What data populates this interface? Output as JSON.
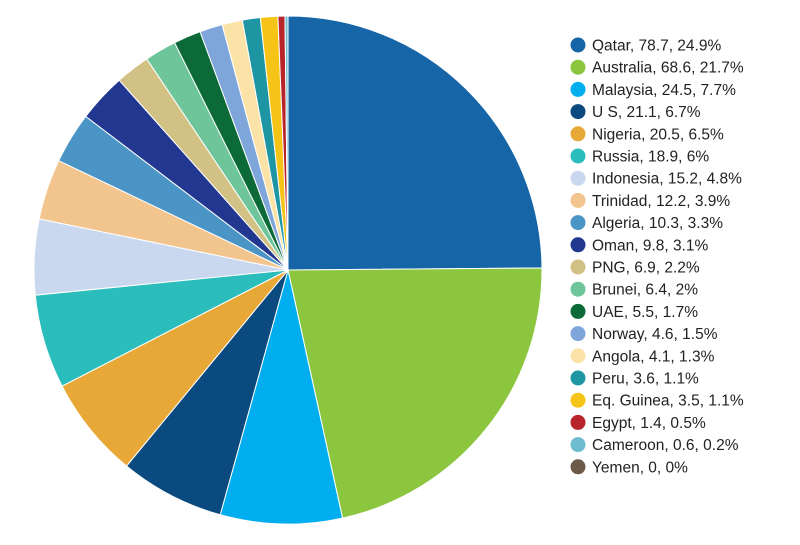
{
  "chart_data": {
    "type": "pie",
    "title": "",
    "legend_position": "right",
    "slices": [
      {
        "label": "Qatar, 78.7, 24.9%",
        "category": "Qatar",
        "value": 78.7,
        "percent": 24.9,
        "color": "#1565a7"
      },
      {
        "label": "Australia, 68.6, 21.7%",
        "category": "Australia",
        "value": 68.6,
        "percent": 21.7,
        "color": "#8cc63f"
      },
      {
        "label": "Malaysia, 24.5, 7.7%",
        "category": "Malaysia",
        "value": 24.5,
        "percent": 7.7,
        "color": "#00aeef"
      },
      {
        "label": "U S, 21.1, 6.7%",
        "category": "U S",
        "value": 21.1,
        "percent": 6.7,
        "color": "#0b4a7f"
      },
      {
        "label": "Nigeria, 20.5, 6.5%",
        "category": "Nigeria",
        "value": 20.5,
        "percent": 6.5,
        "color": "#e8a838"
      },
      {
        "label": "Russia, 18.9, 6%",
        "category": "Russia",
        "value": 18.9,
        "percent": 6,
        "color": "#2bbcbc"
      },
      {
        "label": "Indonesia, 15.2, 4.8%",
        "category": "Indonesia",
        "value": 15.2,
        "percent": 4.8,
        "color": "#c9d8ef"
      },
      {
        "label": "Trinidad, 12.2, 3.9%",
        "category": "Trinidad",
        "value": 12.2,
        "percent": 3.9,
        "color": "#f2c48e"
      },
      {
        "label": "Algeria, 10.3, 3.3%",
        "category": "Algeria",
        "value": 10.3,
        "percent": 3.3,
        "color": "#4a95c6"
      },
      {
        "label": "Oman, 9.8, 3.1%",
        "category": "Oman",
        "value": 9.8,
        "percent": 3.1,
        "color": "#22378f"
      },
      {
        "label": "PNG, 6.9, 2.2%",
        "category": "PNG",
        "value": 6.9,
        "percent": 2.2,
        "color": "#d2c184"
      },
      {
        "label": "Brunei, 6.4, 2%",
        "category": "Brunei",
        "value": 6.4,
        "percent": 2,
        "color": "#6fc59a"
      },
      {
        "label": "UAE, 5.5, 1.7%",
        "category": "UAE",
        "value": 5.5,
        "percent": 1.7,
        "color": "#0c6a39"
      },
      {
        "label": "Norway, 4.6, 1.5%",
        "category": "Norway",
        "value": 4.6,
        "percent": 1.5,
        "color": "#7fa6da"
      },
      {
        "label": "Angola, 4.1, 1.3%",
        "category": "Angola",
        "value": 4.1,
        "percent": 1.3,
        "color": "#fbe3a8"
      },
      {
        "label": "Peru, 3.6, 1.1%",
        "category": "Peru",
        "value": 3.6,
        "percent": 1.1,
        "color": "#1e95a3"
      },
      {
        "label": "Eq. Guinea, 3.5, 1.1%",
        "category": "Eq. Guinea",
        "value": 3.5,
        "percent": 1.1,
        "color": "#f6c416"
      },
      {
        "label": "Egypt, 1.4, 0.5%",
        "category": "Egypt",
        "value": 1.4,
        "percent": 0.5,
        "color": "#b7242a"
      },
      {
        "label": "Cameroon, 0.6, 0.2%",
        "category": "Cameroon",
        "value": 0.6,
        "percent": 0.2,
        "color": "#6fbcd0"
      },
      {
        "label": "Yemen, 0, 0%",
        "category": "Yemen",
        "value": 0,
        "percent": 0,
        "color": "#6e5a48"
      }
    ]
  }
}
